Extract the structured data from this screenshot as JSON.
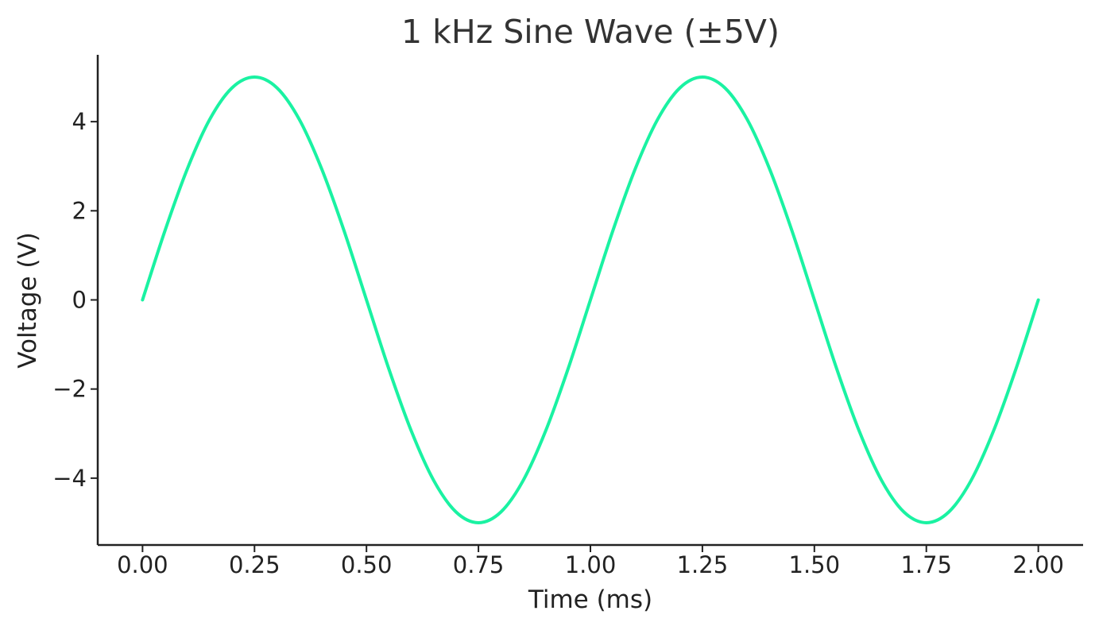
{
  "chart_data": {
    "type": "line",
    "title": "1 kHz Sine Wave (±5V)",
    "xlabel": "Time (ms)",
    "ylabel": "Voltage (V)",
    "xlim": [
      -0.1,
      2.1
    ],
    "ylim": [
      -5.5,
      5.5
    ],
    "x_ticks": [
      0.0,
      0.25,
      0.5,
      0.75,
      1.0,
      1.25,
      1.5,
      1.75,
      2.0
    ],
    "x_tick_labels": [
      "0.00",
      "0.25",
      "0.50",
      "0.75",
      "1.00",
      "1.25",
      "1.50",
      "1.75",
      "2.00"
    ],
    "y_ticks": [
      -4,
      -2,
      0,
      2,
      4
    ],
    "y_tick_labels": [
      "−4",
      "−2",
      "0",
      "2",
      "4"
    ],
    "grid": false,
    "legend": "none",
    "series": [
      {
        "color": "#1af2a2",
        "x": [
          0.0,
          0.05,
          0.1,
          0.15,
          0.2,
          0.25,
          0.3,
          0.35,
          0.4,
          0.45,
          0.5,
          0.55,
          0.6,
          0.65,
          0.7,
          0.75,
          0.8,
          0.85,
          0.9,
          0.95,
          1.0,
          1.05,
          1.1,
          1.15,
          1.2,
          1.25,
          1.3,
          1.35,
          1.4,
          1.45,
          1.5,
          1.55,
          1.6,
          1.65,
          1.7,
          1.75,
          1.8,
          1.85,
          1.9,
          1.95,
          2.0
        ],
        "values": [
          0.0,
          1.55,
          2.94,
          4.05,
          4.76,
          5.0,
          4.76,
          4.05,
          2.94,
          1.55,
          0.0,
          -1.55,
          -2.94,
          -4.05,
          -4.76,
          -5.0,
          -4.76,
          -4.05,
          -2.94,
          -1.55,
          0.0,
          1.55,
          2.94,
          4.05,
          4.76,
          5.0,
          4.76,
          4.05,
          2.94,
          1.55,
          0.0,
          -1.55,
          -2.94,
          -4.05,
          -4.76,
          -5.0,
          -4.76,
          -4.05,
          -2.94,
          -1.55,
          0.0
        ]
      }
    ]
  }
}
